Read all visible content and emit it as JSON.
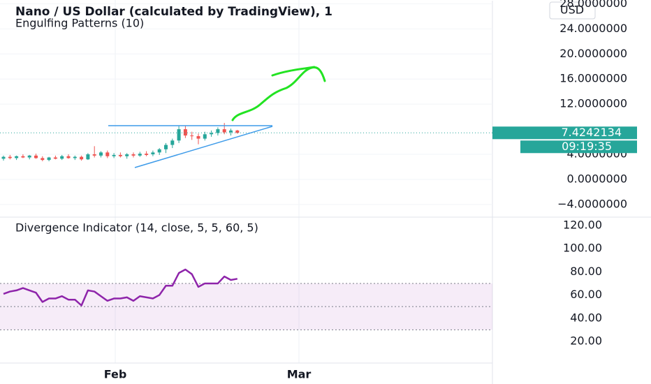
{
  "chart_data": [
    {
      "type": "candlestick",
      "title": "Nano / US Dollar (calculated by TradingView), 1",
      "subtitle": "Engulfing Patterns (10)",
      "currency": "USD",
      "open": [
        3.3,
        3.6,
        3.4,
        3.7,
        3.5,
        3.8,
        3.4,
        3.1,
        3.5,
        3.3,
        3.7,
        3.4,
        3.6,
        3.2,
        4.0,
        3.8,
        4.3,
        3.7,
        3.9,
        3.7,
        4.0,
        3.8,
        4.1,
        4.0,
        4.3,
        4.8,
        5.5,
        6.2,
        8.0,
        7.0,
        6.9,
        6.5,
        7.2,
        7.4,
        8.0,
        7.5,
        7.8
      ],
      "high": [
        3.8,
        3.9,
        3.8,
        4.0,
        3.9,
        4.1,
        3.7,
        3.6,
        3.8,
        3.9,
        4.0,
        3.8,
        3.8,
        4.2,
        5.3,
        4.5,
        4.6,
        4.2,
        4.3,
        4.2,
        4.3,
        4.4,
        4.5,
        4.6,
        5.0,
        5.8,
        6.5,
        8.5,
        8.6,
        7.6,
        7.3,
        7.6,
        7.8,
        8.3,
        9.0,
        8.1,
        7.9
      ],
      "low": [
        3.0,
        3.2,
        3.1,
        3.4,
        3.2,
        3.3,
        2.9,
        2.9,
        3.2,
        3.1,
        3.3,
        3.1,
        3.0,
        3.1,
        3.5,
        3.5,
        3.4,
        3.4,
        3.5,
        3.3,
        3.5,
        3.6,
        3.7,
        3.7,
        3.9,
        4.2,
        5.0,
        5.8,
        6.6,
        6.3,
        5.6,
        6.2,
        6.8,
        7.0,
        7.2,
        7.0,
        7.3
      ],
      "close": [
        3.6,
        3.4,
        3.7,
        3.5,
        3.8,
        3.4,
        3.1,
        3.5,
        3.3,
        3.7,
        3.4,
        3.6,
        3.2,
        4.0,
        3.8,
        4.3,
        3.7,
        3.9,
        3.7,
        4.0,
        3.8,
        4.1,
        3.9,
        4.3,
        4.8,
        5.5,
        6.2,
        8.0,
        7.0,
        6.9,
        6.5,
        7.2,
        7.4,
        8.0,
        7.5,
        7.8,
        7.4242134
      ],
      "up_color": "#26a69a",
      "down_color": "#ef5350",
      "last_price": {
        "value": 7.4242134,
        "label": "7.4242134"
      },
      "countdown": "09:19:35",
      "ylim": [
        -5.9,
        28.6
      ],
      "yticks": [
        {
          "value": 28,
          "label": "28.0000000"
        },
        {
          "value": 24,
          "label": "24.0000000"
        },
        {
          "value": 20,
          "label": "20.0000000"
        },
        {
          "value": 16,
          "label": "16.0000000"
        },
        {
          "value": 12,
          "label": "12.0000000"
        },
        {
          "value": 4,
          "label": "4.0000000"
        },
        {
          "value": 0,
          "label": "0.0000000"
        },
        {
          "value": -4,
          "label": "−4.0000000"
        }
      ],
      "grid": true
    },
    {
      "type": "line",
      "title": "Divergence Indicator (14, close, 5, 5, 60, 5)",
      "values": [
        61,
        63,
        64,
        66,
        64,
        62,
        54,
        57,
        57,
        59,
        56,
        56,
        51,
        64,
        63,
        59,
        55,
        57,
        57,
        58,
        55,
        59,
        58,
        57,
        60,
        68,
        68,
        79,
        82,
        78,
        67,
        70,
        70,
        70,
        76,
        73,
        74
      ],
      "color": "#8e24aa",
      "levels": [
        70,
        50,
        30
      ],
      "ylim": [
        1.3,
        126.6
      ],
      "yticks": [
        {
          "value": 120,
          "label": "120.00"
        },
        {
          "value": 100,
          "label": "100.00"
        },
        {
          "value": 80,
          "label": "80.00"
        },
        {
          "value": 60,
          "label": "60.00"
        },
        {
          "value": 40,
          "label": "40.00"
        },
        {
          "value": 20,
          "label": "20.00"
        }
      ]
    },
    {
      "type": "time-axis",
      "labels": [
        "Feb",
        "Mar"
      ]
    }
  ]
}
